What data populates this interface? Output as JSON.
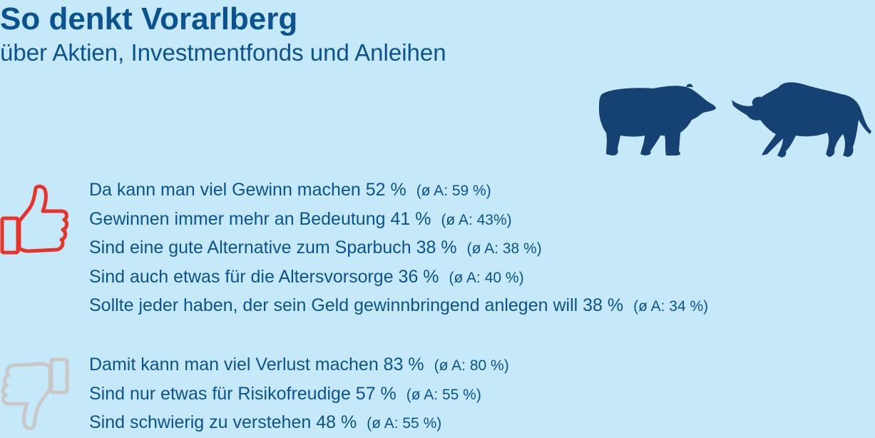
{
  "header": {
    "title": "So denkt Vorarlberg",
    "subtitle": "über Aktien, Investmentfonds und Anleihen"
  },
  "icons": {
    "animals": "bear-and-bull-icon",
    "positive": "thumbs-up-icon",
    "negative": "thumbs-down-icon"
  },
  "colors": {
    "background": "#c5e9f8",
    "text": "#0b5390",
    "animals": "#164173",
    "thumbs_up": "#e8332a",
    "thumbs_down": "#c8c8c8"
  },
  "positive": [
    {
      "text": "Da kann man viel Gewinn machen 52 %",
      "avg": "(ø A: 59 %)"
    },
    {
      "text": "Gewinnen immer mehr an Bedeutung 41 %",
      "avg": "(ø A: 43%)"
    },
    {
      "text": "Sind eine gute Alternative zum Sparbuch 38 %",
      "avg": "(ø A: 38 %)"
    },
    {
      "text": "Sind auch etwas für die Altersvorsorge 36 %",
      "avg": "(ø A: 40 %)"
    },
    {
      "text": "Sollte jeder haben, der sein Geld gewinnbringend anlegen will 38 %",
      "avg": "(ø A: 34 %)"
    }
  ],
  "negative": [
    {
      "text": "Damit kann man viel Verlust machen 83 %",
      "avg": "(ø A: 80 %)"
    },
    {
      "text": "Sind nur etwas für Risikofreudige 57 %",
      "avg": "(ø A: 55 %)"
    },
    {
      "text": "Sind schwierig zu verstehen 48 %",
      "avg": "(ø A: 55 %)"
    }
  ]
}
